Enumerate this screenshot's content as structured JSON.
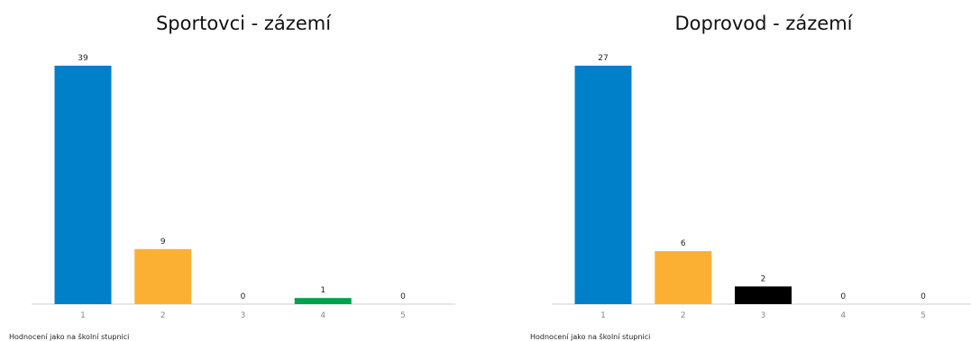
{
  "chart_data": [
    {
      "type": "bar",
      "title": "Sportovci - zázemí",
      "categories": [
        "1",
        "2",
        "3",
        "4",
        "5"
      ],
      "values": [
        39,
        9,
        0,
        1,
        0
      ],
      "colors": [
        "#0080c8",
        "#fbb034",
        "#000000",
        "#00a14b",
        "#000000"
      ],
      "xlabel": "",
      "ylabel": "",
      "ylim": [
        0,
        39
      ],
      "grid": false,
      "legend": "none",
      "note": "Hodnocení jako na školní stupnici"
    },
    {
      "type": "bar",
      "title": "Doprovod - zázemí",
      "categories": [
        "1",
        "2",
        "3",
        "4",
        "5"
      ],
      "values": [
        27,
        6,
        2,
        0,
        0
      ],
      "colors": [
        "#0080c8",
        "#fbb034",
        "#000000",
        "#00a14b",
        "#000000"
      ],
      "xlabel": "",
      "ylabel": "",
      "ylim": [
        0,
        27
      ],
      "grid": false,
      "legend": "none",
      "note": "Hodnocení jako na školní stupnici"
    }
  ]
}
